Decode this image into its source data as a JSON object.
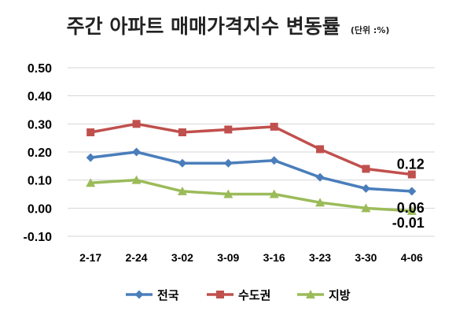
{
  "chart_data": {
    "type": "line",
    "title": "주간 아파트 매매가격지수 변동률",
    "unit": "(단위 :%)",
    "categories": [
      "2-17",
      "2-24",
      "3-02",
      "3-09",
      "3-16",
      "3-23",
      "3-30",
      "4-06"
    ],
    "ylim": [
      -0.1,
      0.5
    ],
    "yticks": [
      "0.50",
      "0.40",
      "0.30",
      "0.20",
      "0.10",
      "0.00",
      "-0.10"
    ],
    "grid": true,
    "legend_position": "bottom",
    "series": [
      {
        "name": "전국",
        "values": [
          0.18,
          0.2,
          0.16,
          0.16,
          0.17,
          0.11,
          0.07,
          0.06
        ],
        "color": "#4a7ebb",
        "marker": "diamond"
      },
      {
        "name": "수도권",
        "values": [
          0.27,
          0.3,
          0.27,
          0.28,
          0.29,
          0.21,
          0.14,
          0.12
        ],
        "color": "#c0504d",
        "marker": "square"
      },
      {
        "name": "지방",
        "values": [
          0.09,
          0.1,
          0.06,
          0.05,
          0.05,
          0.02,
          0.0,
          -0.01
        ],
        "color": "#9bbb59",
        "marker": "triangle"
      }
    ],
    "data_labels": [
      "0.12",
      "0.06",
      "-0.01"
    ]
  }
}
